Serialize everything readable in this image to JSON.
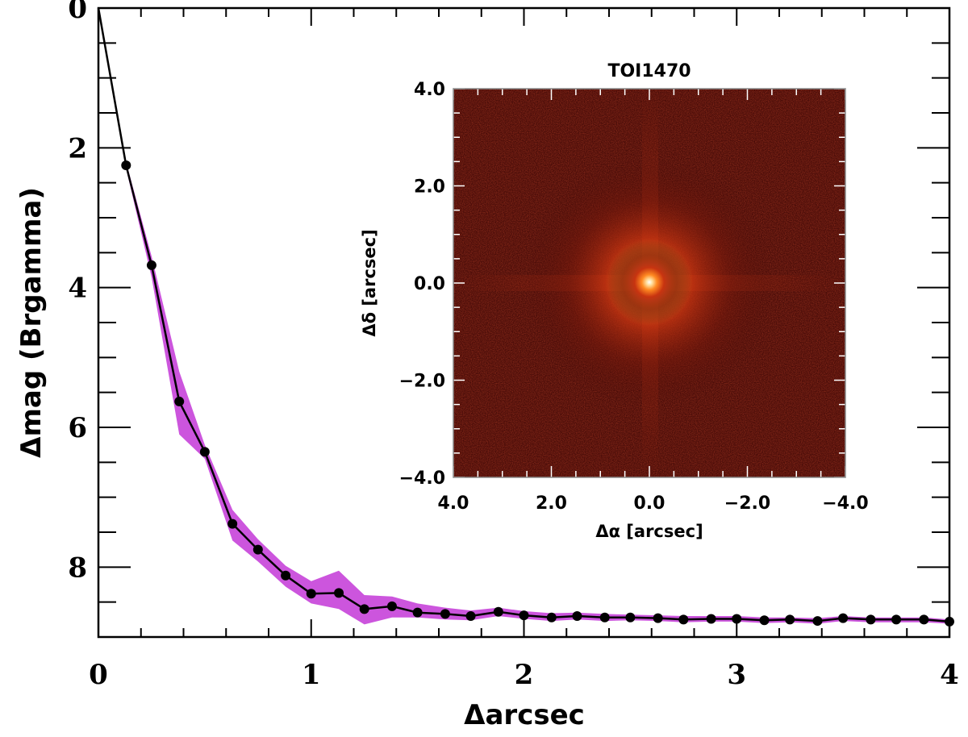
{
  "chart_data": [
    {
      "type": "line",
      "xlabel": "Δarcsec",
      "ylabel": "Δmag (Brgamma)",
      "xlim": [
        0,
        4
      ],
      "ylim": [
        9,
        0
      ],
      "y_inverted": true,
      "x_ticks": [
        "0",
        "1",
        "2",
        "3",
        "4"
      ],
      "y_ticks": [
        "0",
        "2",
        "4",
        "6",
        "8"
      ],
      "colors": {
        "band": "#cc55dd",
        "line": "#000000",
        "marker": "#000000"
      },
      "series": [
        {
          "x": [
            0.0,
            0.13,
            0.25,
            0.38,
            0.5,
            0.63,
            0.75,
            0.88,
            1.0,
            1.13,
            1.25,
            1.38,
            1.5,
            1.63,
            1.75,
            1.88,
            2.0,
            2.13,
            2.25,
            2.38,
            2.5,
            2.63,
            2.75,
            2.88,
            3.0,
            3.13,
            3.25,
            3.38,
            3.5,
            3.63,
            3.75,
            3.88,
            4.0
          ],
          "values": [
            0.0,
            2.25,
            3.68,
            5.63,
            6.35,
            7.38,
            7.75,
            8.12,
            8.38,
            8.37,
            8.6,
            8.56,
            8.65,
            8.67,
            8.7,
            8.64,
            8.69,
            8.72,
            8.7,
            8.72,
            8.72,
            8.73,
            8.75,
            8.74,
            8.74,
            8.76,
            8.75,
            8.77,
            8.73,
            8.75,
            8.75,
            8.75,
            8.78
          ],
          "band_lower": [
            0.0,
            2.2,
            3.55,
            5.2,
            6.25,
            7.18,
            7.6,
            7.98,
            8.2,
            8.05,
            8.4,
            8.42,
            8.52,
            8.58,
            8.62,
            8.58,
            8.63,
            8.66,
            8.65,
            8.67,
            8.68,
            8.69,
            8.7,
            8.7,
            8.7,
            8.72,
            8.72,
            8.73,
            8.7,
            8.72,
            8.72,
            8.72,
            8.75
          ],
          "band_upper": [
            0.0,
            2.3,
            3.85,
            6.1,
            6.45,
            7.62,
            7.92,
            8.28,
            8.52,
            8.6,
            8.82,
            8.72,
            8.72,
            8.75,
            8.76,
            8.7,
            8.74,
            8.77,
            8.75,
            8.77,
            8.76,
            8.77,
            8.79,
            8.78,
            8.78,
            8.8,
            8.79,
            8.81,
            8.77,
            8.79,
            8.79,
            8.79,
            8.81
          ]
        }
      ]
    },
    {
      "type": "heatmap",
      "title": "TOI1470",
      "xlabel": "Δα [arcsec]",
      "ylabel": "Δδ [arcsec]",
      "xlim": [
        4.0,
        -4.0
      ],
      "ylim": [
        -4.0,
        4.0
      ],
      "x_ticks": [
        "4.0",
        "2.0",
        "0.0",
        "−2.0",
        "−4.0"
      ],
      "y_ticks": [
        "4.0",
        "2.0",
        "0.0",
        "−2.0",
        "−4.0"
      ],
      "colors": {
        "background": "#4a0c08",
        "core": "#ffffff",
        "halo": "#ff7a1a"
      }
    }
  ]
}
